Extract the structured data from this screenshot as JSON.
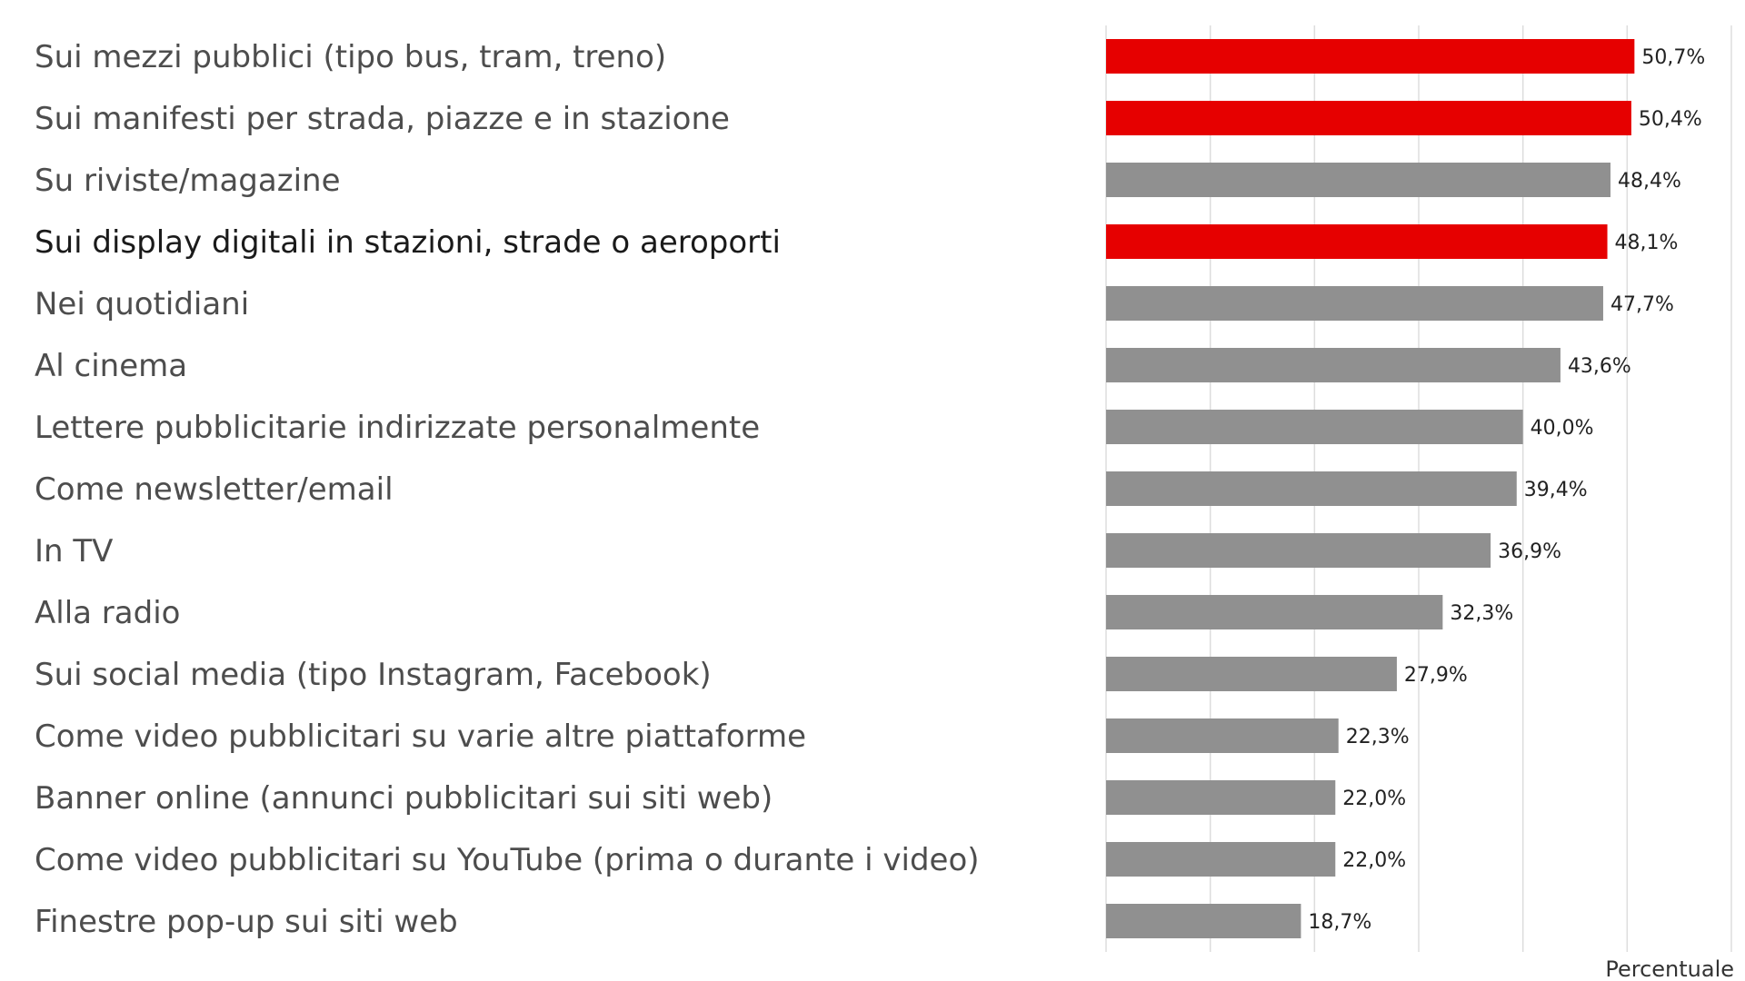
{
  "chart_data": {
    "type": "bar",
    "orientation": "horizontal",
    "xlabel": "Percentuale",
    "xlim": [
      0,
      60
    ],
    "grid": true,
    "categories": [
      "Sui mezzi pubblici (tipo bus, tram, treno)",
      "Sui manifesti per strada, piazze e in stazione",
      "Su riviste/magazine",
      "Sui display digitali in stazioni, strade o aeroporti",
      "Nei quotidiani",
      "Al cinema",
      "Lettere pubblicitarie indirizzate personalmente",
      "Come newsletter/email",
      "In TV",
      "Alla radio",
      "Sui social media (tipo Instagram, Facebook)",
      "Come video pubblicitari su varie altre piattaforme",
      "Banner online (annunci pubblicitari sui siti web)",
      "Come video pubblicitari su YouTube (prima o durante i video)",
      "Finestre pop-up sui siti web"
    ],
    "values": [
      50.7,
      50.4,
      48.4,
      48.1,
      47.7,
      43.6,
      40.0,
      39.4,
      36.9,
      32.3,
      27.9,
      22.3,
      22.0,
      22.0,
      18.7
    ],
    "value_labels": [
      "50,7%",
      "50,4%",
      "48,4%",
      "48,1%",
      "47,7%",
      "43,6%",
      "40,0%",
      "39,4%",
      "36,9%",
      "32,3%",
      "27,9%",
      "22,3%",
      "22,0%",
      "22,0%",
      "18,7%"
    ],
    "highlighted": [
      true,
      true,
      false,
      true,
      false,
      false,
      false,
      false,
      false,
      false,
      false,
      false,
      false,
      false,
      false
    ],
    "colors": {
      "highlight": "#e60000",
      "default": "#909090"
    }
  }
}
